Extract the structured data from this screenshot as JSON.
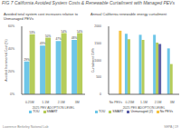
{
  "title": "FIG 7 California Avoided System Costs & Renewable Curtailment with Managed PEVs",
  "annotations": [
    "Lawrence Berkeley National Lab",
    "SEPA | 19"
  ],
  "chart_data": [
    {
      "type": "bar",
      "title": "Avoided total system cost increases relative to\nUnmanaged PEVs",
      "x_label": "2025 PEV ADOPTION LEVEL",
      "y_label": "Avoided Incremental Cost (%)",
      "categories": [
        "0.25M",
        "1.1M",
        "2.5M",
        "3M"
      ],
      "series": [
        {
          "name": "TOU",
          "color": "#6ec6e8",
          "values": [
            29,
            43,
            47,
            48
          ],
          "value_labels": [
            "29%",
            "43%",
            "47%",
            "48%"
          ]
        },
        {
          "name": "SMART",
          "color": "#b5cc5a",
          "values": [
            53,
            50,
            54,
            54
          ],
          "value_labels": [
            "53%",
            "50%",
            "54%",
            "54%"
          ]
        }
      ],
      "ylim": [
        0,
        60
      ],
      "yticks": [
        {
          "value": 0,
          "label": "0%"
        },
        {
          "value": 20,
          "label": "20%"
        },
        {
          "value": 40,
          "label": "40%"
        },
        {
          "value": 60,
          "label": "60%"
        }
      ],
      "data_labels": true,
      "legend": "bottom"
    },
    {
      "type": "bar",
      "title": "Annual California renewable energy curtailment",
      "x_label": "2025 PEV ADOPTION LEVEL",
      "y_label": "Curtailment GWh",
      "categories": [
        "No PEVs",
        "0.25M",
        "1.1M",
        "2.5M",
        "3M"
      ],
      "series": [
        {
          "name": "TOU",
          "color": "#6ec6e8",
          "values": [
            null,
            1780,
            1750,
            1750,
            1350
          ]
        },
        {
          "name": "SMART",
          "color": "#b5cc5a",
          "values": [
            null,
            1620,
            1600,
            1520,
            890
          ]
        },
        {
          "name": "Unmanaged (2)",
          "color": "#5b5ea6",
          "values": [
            null,
            null,
            null,
            1480,
            null
          ]
        },
        {
          "name": "No PEVs",
          "color": "#f5c242",
          "values": [
            1870,
            null,
            null,
            null,
            null
          ]
        }
      ],
      "ylim": [
        0,
        2000
      ],
      "yticks": [
        0,
        500,
        1000,
        1500,
        2000
      ],
      "legend": "bottom"
    }
  ]
}
